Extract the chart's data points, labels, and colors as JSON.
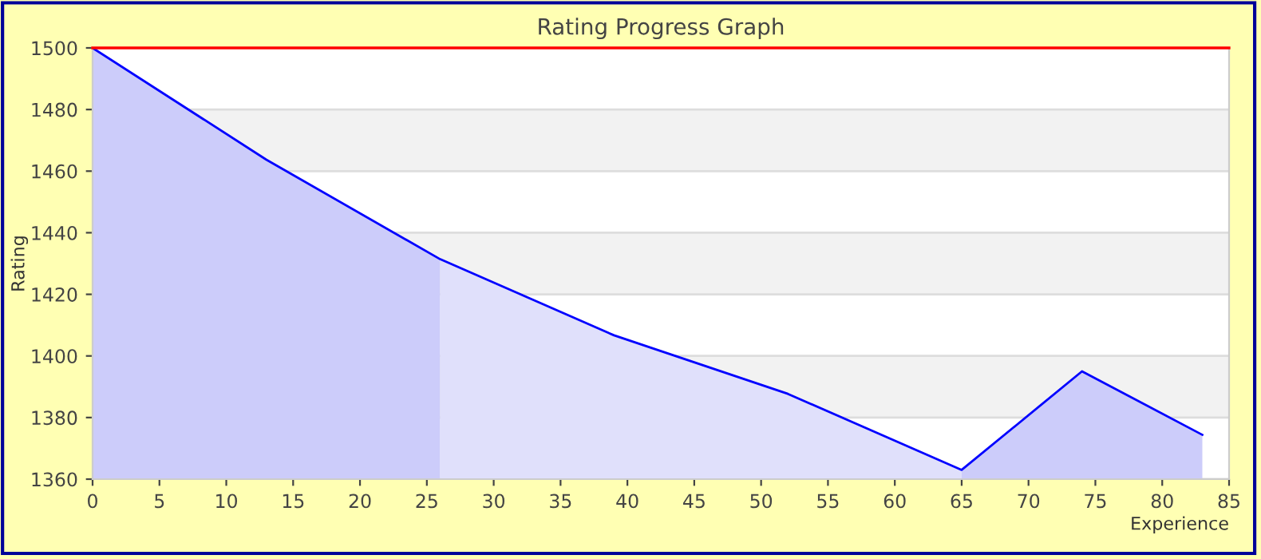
{
  "chart_data": {
    "type": "area",
    "title": "Rating Progress Graph",
    "xlabel": "Experience",
    "ylabel": "Rating",
    "xlim": [
      0,
      85
    ],
    "xticks": [
      0,
      5,
      10,
      15,
      20,
      25,
      30,
      35,
      40,
      45,
      50,
      55,
      60,
      65,
      70,
      75,
      80,
      85
    ],
    "ylim": [
      1360,
      1500
    ],
    "yticks": [
      1360,
      1380,
      1400,
      1420,
      1440,
      1460,
      1480,
      1500
    ],
    "grid": "y",
    "ref_lines": [
      {
        "axis": "y",
        "value": 1500,
        "color": "#ff0000"
      }
    ],
    "series": [
      {
        "color": "#ccccfa",
        "x": [
          0,
          13,
          26
        ],
        "values": [
          1500,
          1463.7,
          1431.4
        ]
      },
      {
        "color": "#e0e0fb",
        "x": [
          26,
          39,
          52,
          65
        ],
        "values": [
          1431.4,
          1406.7,
          1387.7,
          1363
        ]
      },
      {
        "color": "#ccccfa",
        "x": [
          65,
          74,
          83
        ],
        "values": [
          1363,
          1395,
          1374.4
        ]
      },
      {
        "type": "line",
        "color": "#0000ff",
        "x": [
          0,
          13,
          26,
          39,
          52,
          65,
          74,
          83
        ],
        "values": [
          1500,
          1463.7,
          1431.4,
          1406.7,
          1387.7,
          1363,
          1395,
          1374.4
        ]
      }
    ]
  }
}
